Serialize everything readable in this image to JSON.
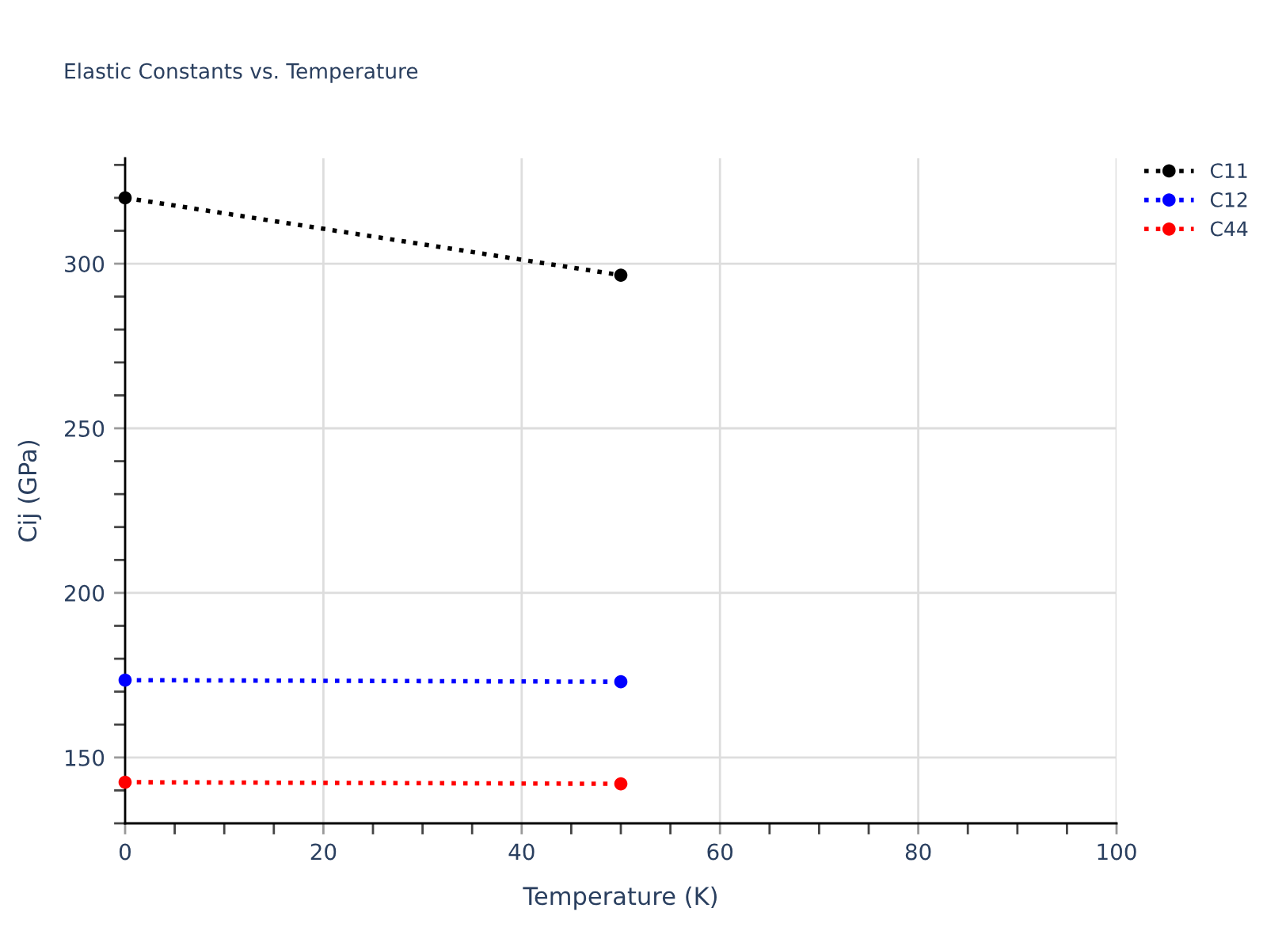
{
  "chart_data": {
    "type": "line",
    "title": "Elastic Constants vs. Temperature",
    "xlabel": "Temperature (K)",
    "ylabel": "Cij (GPa)",
    "x": [
      0,
      50
    ],
    "series": [
      {
        "name": "C11",
        "color": "#000000",
        "values": [
          320,
          296.5
        ]
      },
      {
        "name": "C12",
        "color": "#0000ff",
        "values": [
          173.5,
          173
        ]
      },
      {
        "name": "C44",
        "color": "#ff0000",
        "values": [
          142.5,
          142
        ]
      }
    ],
    "xlim": [
      0,
      100
    ],
    "xticks": [
      0,
      {
        "value": 5,
        "label": null
      },
      {
        "value": 10,
        "label": null
      },
      {
        "value": 15,
        "label": null
      },
      20,
      {
        "value": 25,
        "label": null
      },
      {
        "value": 30,
        "label": null
      },
      {
        "value": 35,
        "label": null
      },
      40,
      {
        "value": 45,
        "label": null
      },
      {
        "value": 50,
        "label": null
      },
      {
        "value": 55,
        "label": null
      },
      60,
      {
        "value": 65,
        "label": null
      },
      {
        "value": 70,
        "label": null
      },
      {
        "value": 75,
        "label": null
      },
      80,
      {
        "value": 85,
        "label": null
      },
      {
        "value": 90,
        "label": null
      },
      {
        "value": 95,
        "label": null
      },
      100
    ],
    "ylim": [
      130,
      332
    ],
    "yticks": [
      {
        "value": 130,
        "label": null
      },
      {
        "value": 140,
        "label": null
      },
      150,
      {
        "value": 160,
        "label": null
      },
      {
        "value": 170,
        "label": null
      },
      {
        "value": 180,
        "label": null
      },
      {
        "value": 190,
        "label": null
      },
      200,
      {
        "value": 210,
        "label": null
      },
      {
        "value": 220,
        "label": null
      },
      {
        "value": 230,
        "label": null
      },
      {
        "value": 240,
        "label": null
      },
      250,
      {
        "value": 260,
        "label": null
      },
      {
        "value": 270,
        "label": null
      },
      {
        "value": 280,
        "label": null
      },
      {
        "value": 290,
        "label": null
      },
      300,
      {
        "value": 310,
        "label": null
      },
      {
        "value": 320,
        "label": null
      },
      {
        "value": 330,
        "label": null
      }
    ],
    "grid": true,
    "legend": "top right",
    "marker": "circle",
    "line_style": "dotted"
  }
}
